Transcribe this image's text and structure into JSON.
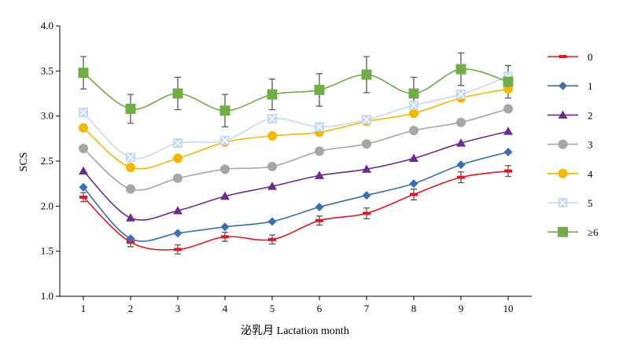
{
  "chart_data": {
    "type": "line",
    "title": "",
    "xlabel": "泌乳月 Lactation month",
    "ylabel": "SCS",
    "x": [
      1,
      2,
      3,
      4,
      5,
      6,
      7,
      8,
      9,
      10
    ],
    "xlim": [
      0.5,
      10.5
    ],
    "ylim": [
      1.0,
      4.0
    ],
    "yticks": [
      "1.0",
      "1.5",
      "2.0",
      "2.5",
      "3.0",
      "3.5",
      "4.0"
    ],
    "grid": false,
    "legend_position": "right",
    "series": [
      {
        "name": "0",
        "color": "#e8141e",
        "marker": "bar",
        "values": [
          2.1,
          1.6,
          1.52,
          1.66,
          1.63,
          1.84,
          1.92,
          2.13,
          2.32,
          2.39
        ],
        "errors": [
          0.05,
          0.05,
          0.05,
          0.05,
          0.05,
          0.05,
          0.06,
          0.06,
          0.06,
          0.06
        ]
      },
      {
        "name": "1",
        "color": "#3a6fb7",
        "marker": "diamond",
        "values": [
          2.21,
          1.64,
          1.7,
          1.77,
          1.83,
          1.99,
          2.12,
          2.25,
          2.46,
          2.6
        ],
        "errors": []
      },
      {
        "name": "2",
        "color": "#6b2c8e",
        "marker": "triangle",
        "values": [
          2.39,
          1.87,
          1.95,
          2.11,
          2.22,
          2.34,
          2.41,
          2.53,
          2.7,
          2.83
        ],
        "errors": []
      },
      {
        "name": "3",
        "color": "#a6a6a6",
        "marker": "circle",
        "values": [
          2.64,
          2.19,
          2.31,
          2.41,
          2.44,
          2.61,
          2.69,
          2.84,
          2.93,
          3.08
        ],
        "errors": []
      },
      {
        "name": "4",
        "color": "#f5b800",
        "marker": "circle",
        "values": [
          2.87,
          2.43,
          2.53,
          2.71,
          2.78,
          2.82,
          2.94,
          3.03,
          3.2,
          3.3
        ],
        "errors": []
      },
      {
        "name": "5",
        "color": "#c6d9f1",
        "marker": "x-square",
        "values": [
          3.04,
          2.54,
          2.7,
          2.73,
          2.97,
          2.88,
          2.96,
          3.12,
          3.24,
          3.44
        ],
        "errors": []
      },
      {
        "name": "≥6",
        "color": "#70ad47",
        "marker": "square",
        "values": [
          3.48,
          3.08,
          3.25,
          3.06,
          3.24,
          3.29,
          3.46,
          3.25,
          3.52,
          3.38
        ],
        "errors": [
          0.18,
          0.16,
          0.18,
          0.18,
          0.17,
          0.18,
          0.2,
          0.18,
          0.18,
          0.18
        ]
      }
    ]
  }
}
